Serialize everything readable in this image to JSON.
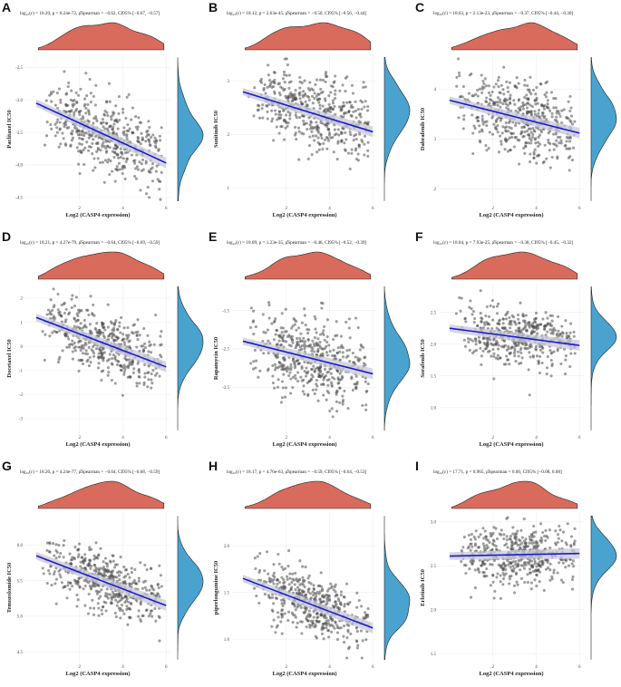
{
  "chart_data": [
    {
      "id": "A",
      "type": "scatter",
      "title": "log₁₀(ε) = 18.20, p = 6.24e-72, ρ̂Spearman = −0.62, CI95% [−0.67, −0.57]",
      "xlabel": "Log2 (CASP4 expression)",
      "ylabel": "Paclitaxel IC50",
      "xlim": [
        -0.5,
        6.2
      ],
      "ylim": [
        -4.6,
        -2.3
      ],
      "xticks": [
        2,
        4,
        6
      ],
      "yticks": [
        -2.5,
        -3.0,
        -3.5,
        -4.0,
        -4.5
      ],
      "ytick_labels": [
        "-2.5",
        "-3.0",
        "-3.5",
        "-4.0",
        "-4.5"
      ],
      "fit": {
        "x": [
          0,
          6
        ],
        "y": [
          -3.05,
          -3.97
        ]
      },
      "noise": 0.28,
      "seed": 11
    },
    {
      "id": "B",
      "type": "scatter",
      "title": "log₁₀(ε) = 18.12, p = 2.63e-45, ρ̂Spearman = −0.50, CI95% [−0.56, −0.44]",
      "xlabel": "Log2 (CASP4 expression)",
      "ylabel": "Sunitinib IC50",
      "xlim": [
        -0.5,
        6.2
      ],
      "ylim": [
        0.7,
        3.5
      ],
      "xticks": [
        2,
        4,
        6
      ],
      "yticks": [
        3,
        2,
        1
      ],
      "ytick_labels": [
        "3",
        "2",
        "1"
      ],
      "fit": {
        "x": [
          0,
          6
        ],
        "y": [
          2.8,
          2.05
        ]
      },
      "noise": 0.35,
      "seed": 23
    },
    {
      "id": "C",
      "type": "scatter",
      "title": "log₁₀(ε) = 18.03, p = 2.13e-23, ρ̂Spearman = −0.37, CI95% [−0.44, −0.30]",
      "xlabel": "Log2 (CASP4 expression)",
      "ylabel": "Dabrafenib IC50",
      "xlim": [
        -0.5,
        6.2
      ],
      "ylim": [
        1.7,
        4.7
      ],
      "xticks": [
        2,
        4,
        6
      ],
      "yticks": [
        4,
        3,
        2
      ],
      "ytick_labels": [
        "4",
        "3",
        "2"
      ],
      "fit": {
        "x": [
          0,
          6
        ],
        "y": [
          3.78,
          3.12
        ]
      },
      "noise": 0.38,
      "seed": 37
    },
    {
      "id": "D",
      "type": "scatter",
      "title": "log₁₀(ε) = 18.21, p = 4.27e-79, ρ̂Spearman = −0.64, CI95% [−0.69, −0.59]",
      "xlabel": "Log2 (CASP4 expression)",
      "ylabel": "Docetaxel IC50",
      "xlim": [
        -0.5,
        6.2
      ],
      "ylim": [
        -3.6,
        2.6
      ],
      "xticks": [
        2,
        4,
        6
      ],
      "yticks": [
        2,
        1,
        0,
        -1,
        -2,
        -3
      ],
      "ytick_labels": [
        "2",
        "1",
        "0",
        "-1",
        "-2",
        "-3"
      ],
      "fit": {
        "x": [
          0,
          6
        ],
        "y": [
          1.2,
          -0.85
        ]
      },
      "noise": 0.65,
      "seed": 41
    },
    {
      "id": "E",
      "type": "scatter",
      "title": "log₁₀(ε) = 18.09, p = 1.23e-35, ρ̂Spearman = −0.46, CI95% [−0.52, −0.39]",
      "xlabel": "Log2 (CASP4 expression)",
      "ylabel": "Rapamycin IC50",
      "xlim": [
        -0.5,
        6.2
      ],
      "ylim": [
        -4.7,
        -0.8
      ],
      "xticks": [
        2,
        4,
        6
      ],
      "yticks": [
        -1.5,
        -2.5,
        -3.5
      ],
      "ytick_labels": [
        "-1.5",
        "-2.5",
        "-3.5"
      ],
      "fit": {
        "x": [
          0,
          6
        ],
        "y": [
          -2.3,
          -3.15
        ]
      },
      "noise": 0.55,
      "seed": 53
    },
    {
      "id": "F",
      "type": "scatter",
      "title": "log₁₀(ε) = 18.04, p = 7.93e-25, ρ̂Spearman = −0.38, CI95% [−0.45, −0.32]",
      "xlabel": "Log2 (CASP4 expression)",
      "ylabel": "Sorafenib IC50",
      "xlim": [
        -0.5,
        6.2
      ],
      "ylim": [
        0.6,
        2.95
      ],
      "xticks": [
        2,
        4,
        6
      ],
      "yticks": [
        2.5,
        2.0,
        1.5,
        1.0
      ],
      "ytick_labels": [
        "2.5",
        "2.0",
        "1.5",
        "1.0"
      ],
      "fit": {
        "x": [
          0,
          6
        ],
        "y": [
          2.25,
          1.98
        ]
      },
      "noise": 0.22,
      "seed": 61
    },
    {
      "id": "G",
      "type": "scatter",
      "title": "log₁₀(ε) = 18.20, p = 4.24e-77, ρ̂Spearman = −0.64, CI95% [−0.68, −0.59]",
      "xlabel": "Log2 (CASP4 expression)",
      "ylabel": "Temozolomide IC50",
      "xlim": [
        -0.5,
        6.2
      ],
      "ylim": [
        4.35,
        6.45
      ],
      "xticks": [
        2,
        4,
        6
      ],
      "yticks": [
        6.0,
        5.5,
        5.0,
        4.5
      ],
      "ytick_labels": [
        "6.0",
        "5.5",
        "5.0",
        "4.5"
      ],
      "fit": {
        "x": [
          0,
          6
        ],
        "y": [
          5.85,
          5.15
        ]
      },
      "noise": 0.2,
      "seed": 71
    },
    {
      "id": "H",
      "type": "scatter",
      "title": "log₁₀(ε) = 18.17, p = 4.76e-63, ρ̂Spearman = −0.59, CI95% [−0.64, −0.53]",
      "xlabel": "Log2 (CASP4 expression)",
      "ylabel": "piperlongumine IC50",
      "xlim": [
        -0.5,
        6.2
      ],
      "ylim": [
        0.75,
        2.35
      ],
      "xticks": [
        2,
        4,
        6
      ],
      "yticks": [
        2.0,
        1.5,
        1.0
      ],
      "ytick_labels": [
        "2.0",
        "1.5",
        "1.0"
      ],
      "fit": {
        "x": [
          0,
          6
        ],
        "y": [
          1.65,
          1.12
        ]
      },
      "noise": 0.16,
      "seed": 83
    },
    {
      "id": "I",
      "type": "scatter",
      "title": "log₁₀(ε) = 17.71, p = 0.965, ρ̂Spearman = 0.00, CI95% [−0.08, 0.08]",
      "xlabel": "Log2 (CASP4 expression)",
      "ylabel": "Erlotinib IC50",
      "xlim": [
        -0.5,
        6.2
      ],
      "ylim": [
        1.4,
        3.1
      ],
      "xticks": [
        2,
        4,
        6
      ],
      "yticks": [
        3.0,
        2.5,
        2.0,
        1.5
      ],
      "ytick_labels": [
        "3.0",
        "2.5",
        "2.0",
        "1.5"
      ],
      "fit": {
        "x": [
          0,
          6
        ],
        "y": [
          2.61,
          2.64
        ]
      },
      "noise": 0.17,
      "seed": 97
    }
  ],
  "colors": {
    "top_density": "#d96b5c",
    "side_density": "#4aa3cf",
    "points": "#4d4d4d",
    "fit": "#1a1acc",
    "band": "#c8c8d8"
  }
}
